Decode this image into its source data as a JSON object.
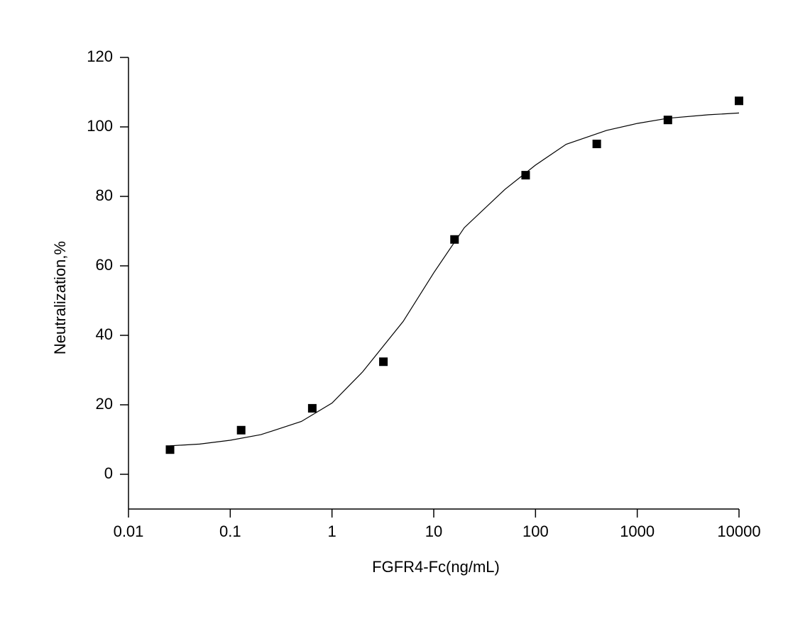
{
  "chart_data": {
    "type": "scatter",
    "xlabel": "FGFR4-Fc(ng/mL)",
    "ylabel": "Neutralization,%",
    "xscale": "log",
    "xlim": [
      0.01,
      10000
    ],
    "xticks": [
      0.01,
      0.1,
      1,
      10,
      100,
      1000,
      10000
    ],
    "ylim": [
      -10,
      120
    ],
    "yticks": [
      0,
      20,
      40,
      60,
      80,
      100,
      120
    ],
    "series": [
      {
        "kind": "points",
        "color": "#000000",
        "x": [
          0.0256,
          0.128,
          0.64,
          3.2,
          16,
          80,
          400,
          2000,
          10000
        ],
        "values": [
          7.1,
          12.7,
          19.0,
          32.4,
          67.6,
          86.1,
          95.1,
          102,
          107.5
        ]
      },
      {
        "kind": "line",
        "color": "#000000",
        "x": [
          0.0256,
          0.05,
          0.1,
          0.2,
          0.5,
          1,
          2,
          5,
          10,
          20,
          50,
          100,
          200,
          500,
          1000,
          2000,
          5000,
          10000
        ],
        "values": [
          8.2,
          8.7,
          9.8,
          11.4,
          15.2,
          20.5,
          29.5,
          44,
          58,
          71,
          82,
          89,
          95,
          99,
          101,
          102.5,
          103.5,
          104
        ]
      }
    ]
  }
}
